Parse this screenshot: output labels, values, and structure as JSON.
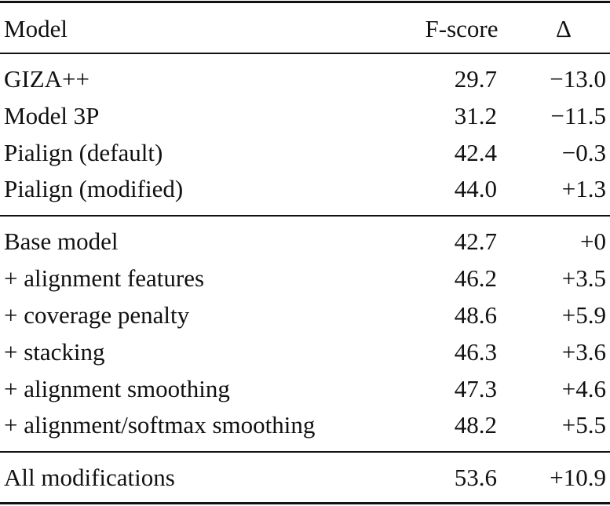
{
  "table": {
    "header": [
      "Model",
      "F-score",
      "Δ"
    ],
    "groups": [
      [
        [
          "GIZA++",
          "29.7",
          "−13.0"
        ],
        [
          "Model 3P",
          "31.2",
          "−11.5"
        ],
        [
          "Pialign (default)",
          "42.4",
          "−0.3"
        ],
        [
          "Pialign (modified)",
          "44.0",
          "+1.3"
        ]
      ],
      [
        [
          "Base model",
          "42.7",
          "+0"
        ],
        [
          "+ alignment features",
          "46.2",
          "+3.5"
        ],
        [
          "+ coverage penalty",
          "48.6",
          "+5.9"
        ],
        [
          "+ stacking",
          "46.3",
          "+3.6"
        ],
        [
          "+ alignment smoothing",
          "47.3",
          "+4.6"
        ],
        [
          "+ alignment/softmax smoothing",
          "48.2",
          "+5.5"
        ]
      ],
      [
        [
          "All modifications",
          "53.6",
          "+10.9"
        ]
      ]
    ]
  }
}
